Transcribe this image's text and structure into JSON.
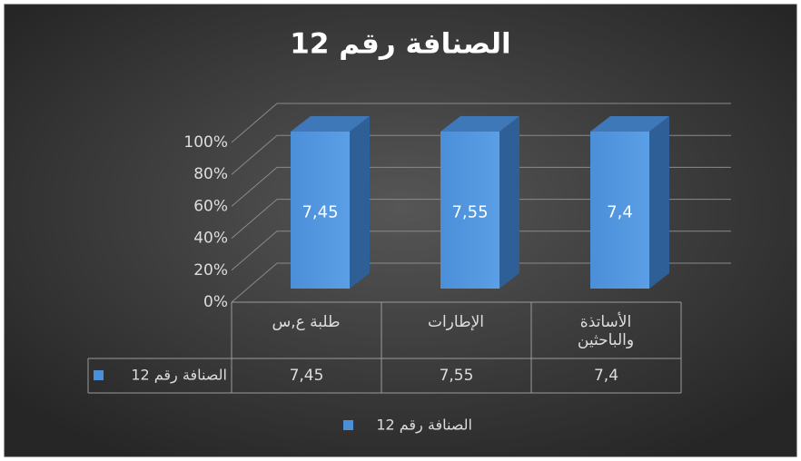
{
  "chart_data": {
    "type": "bar",
    "stacked_percent": true,
    "title": "الصنافة رقم 12",
    "categories": [
      "طلبة ع,س",
      "الإطارات",
      "الأساتذة والباحثين"
    ],
    "series": [
      {
        "name": "الصنافة رقم 12",
        "color": "#4a8fd8",
        "values": [
          7.45,
          7.55,
          7.4
        ],
        "value_labels": [
          "7,45",
          "7,55",
          "7,4"
        ]
      }
    ],
    "ylim": [
      0,
      100
    ],
    "yticks": [
      {
        "value": 0,
        "label": "0%"
      },
      {
        "value": 20,
        "label": "20%"
      },
      {
        "value": 40,
        "label": "40%"
      },
      {
        "value": 60,
        "label": "60%"
      },
      {
        "value": 80,
        "label": "80%"
      },
      {
        "value": 100,
        "label": "100%"
      }
    ],
    "grid": true,
    "legend": "bottom",
    "data_table": true
  }
}
